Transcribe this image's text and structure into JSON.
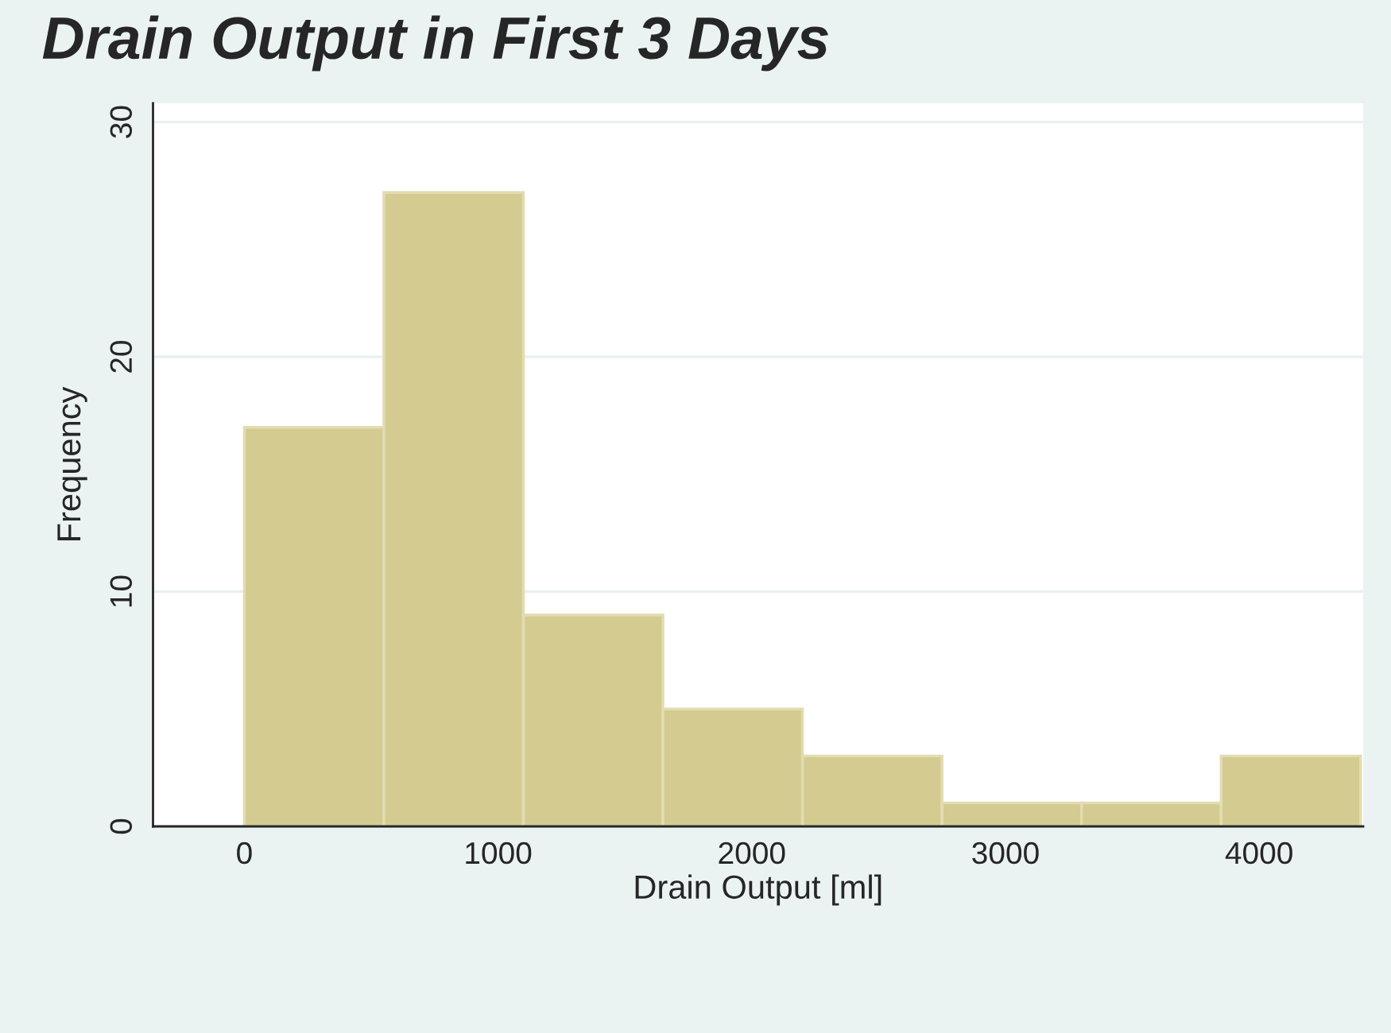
{
  "chart_data": {
    "type": "histogram",
    "title": "Drain Output in First 3 Days",
    "xlabel": "Drain Output [ml]",
    "ylabel": "Frequency",
    "bins": [
      0,
      550,
      1100,
      1650,
      2200,
      2750,
      3300,
      3850,
      4400
    ],
    "values": [
      17,
      27,
      9,
      5,
      3,
      1,
      1,
      3
    ],
    "color": "#d4cb91",
    "xlim": [
      -360,
      4410
    ],
    "xticks": [
      0,
      1000,
      2000,
      3000,
      4000
    ],
    "ylim": [
      0,
      30.8
    ],
    "yticks": [
      0,
      10,
      20,
      30
    ],
    "grid": "y"
  }
}
